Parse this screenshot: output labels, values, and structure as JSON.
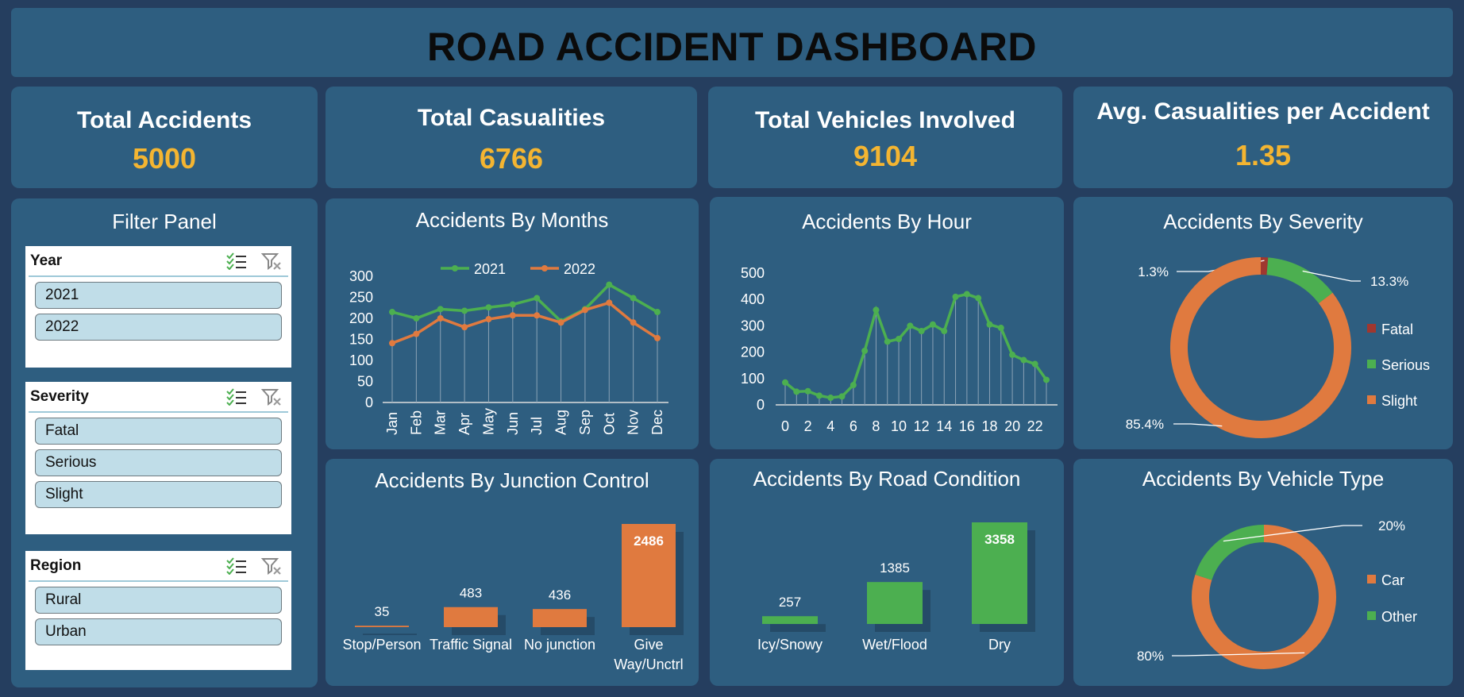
{
  "dashboard": {
    "title": "ROAD ACCIDENT DASHBOARD"
  },
  "kpis": [
    {
      "label": "Total Accidents",
      "value": "5000"
    },
    {
      "label": "Total Casualities",
      "value": "6766"
    },
    {
      "label": "Total Vehicles Involved",
      "value": "9104"
    },
    {
      "label": "Avg. Casualities per Accident",
      "value": "1.35"
    }
  ],
  "filter_panel": {
    "title": "Filter Panel",
    "slicers": [
      {
        "header": "Year",
        "items": [
          "2021",
          "2022"
        ]
      },
      {
        "header": "Severity",
        "items": [
          "Fatal",
          "Serious",
          "Slight"
        ]
      },
      {
        "header": "Region",
        "items": [
          "Rural",
          "Urban"
        ]
      }
    ]
  },
  "colors": {
    "green": "#4caf50",
    "orange": "#e07a3f",
    "panel": "#2e5e80",
    "background": "#253e5f",
    "kpi_value": "#f4b531",
    "fatal": "#a0372f"
  },
  "chart_titles": {
    "months": "Accidents By Months",
    "hour": "Accidents By Hour",
    "severity": "Accidents By Severity",
    "junction": "Accidents By Junction Control",
    "road": "Accidents By Road Condition",
    "vehicle": "Accidents By Vehicle Type"
  },
  "chart_data": [
    {
      "id": "months",
      "type": "line",
      "title": "Accidents By Months",
      "categories": [
        "Jan",
        "Feb",
        "Mar",
        "Apr",
        "May",
        "Jun",
        "Jul",
        "Aug",
        "Sep",
        "Oct",
        "Nov",
        "Dec"
      ],
      "series": [
        {
          "name": "2021",
          "color": "#4caf50",
          "values": [
            215,
            200,
            222,
            218,
            226,
            233,
            248,
            193,
            222,
            280,
            248,
            215
          ]
        },
        {
          "name": "2022",
          "color": "#e07a3f",
          "values": [
            141,
            163,
            200,
            179,
            198,
            207,
            207,
            190,
            220,
            237,
            190,
            153
          ]
        }
      ],
      "ylim": [
        0,
        300
      ],
      "yticks": [
        0,
        50,
        100,
        150,
        200,
        250,
        300
      ],
      "legend": "top"
    },
    {
      "id": "hour",
      "type": "line",
      "title": "Accidents By Hour",
      "x": [
        0,
        1,
        2,
        3,
        4,
        5,
        6,
        7,
        8,
        9,
        10,
        11,
        12,
        13,
        14,
        15,
        16,
        17,
        18,
        19,
        20,
        21,
        22,
        23
      ],
      "series": [
        {
          "name": "",
          "color": "#4caf50",
          "values": [
            85,
            50,
            52,
            35,
            27,
            32,
            75,
            205,
            360,
            240,
            250,
            300,
            280,
            305,
            280,
            410,
            420,
            405,
            305,
            292,
            190,
            170,
            155,
            95
          ]
        }
      ],
      "xticks": [
        0,
        2,
        4,
        6,
        8,
        10,
        12,
        14,
        16,
        18,
        20,
        22
      ],
      "ylim": [
        0,
        500
      ],
      "yticks": [
        0,
        100,
        200,
        300,
        400,
        500
      ]
    },
    {
      "id": "severity",
      "type": "pie",
      "title": "Accidents By Severity",
      "labels": [
        "Fatal",
        "Serious",
        "Slight"
      ],
      "values": [
        1.3,
        13.3,
        85.4
      ],
      "value_labels": [
        "1.3%",
        "13.3%",
        "85.4%"
      ],
      "colors": [
        "#a0372f",
        "#4caf50",
        "#e07a3f"
      ],
      "legend": "right"
    },
    {
      "id": "junction",
      "type": "bar",
      "title": "Accidents By Junction Control",
      "categories": [
        "Stop/Person",
        "Traffic Signal",
        "No junction",
        "Give Way/Unctrl"
      ],
      "values": [
        35,
        483,
        436,
        2486
      ],
      "color": "#e07a3f"
    },
    {
      "id": "road",
      "type": "bar",
      "title": "Accidents By Road Condition",
      "categories": [
        "Icy/Snowy",
        "Wet/Flood",
        "Dry"
      ],
      "values": [
        257,
        1385,
        3358
      ],
      "color": "#4caf50"
    },
    {
      "id": "vehicle",
      "type": "pie",
      "title": "Accidents By Vehicle Type",
      "labels": [
        "Car",
        "Other"
      ],
      "values": [
        80,
        20
      ],
      "value_labels": [
        "80%",
        "20%"
      ],
      "colors": [
        "#e07a3f",
        "#4caf50"
      ],
      "legend": "right"
    }
  ]
}
